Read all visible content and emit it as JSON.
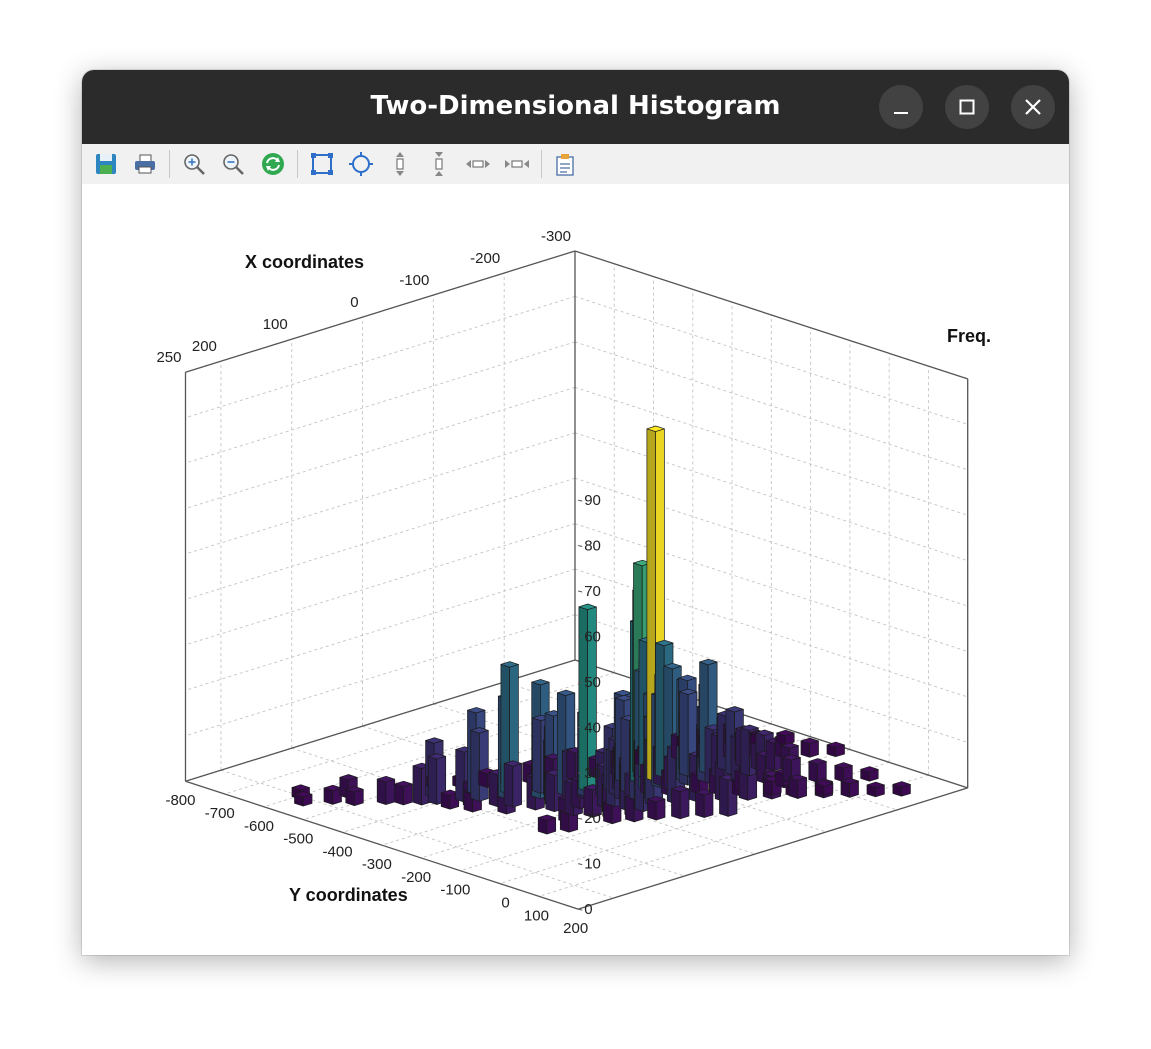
{
  "window": {
    "title": "Two-Dimensional Histogram",
    "controls": {
      "minimize": "minimize-icon",
      "maximize": "maximize-icon",
      "close": "close-icon"
    }
  },
  "toolbar": {
    "items": [
      {
        "name": "save",
        "icon": "save-icon"
      },
      {
        "name": "print",
        "icon": "print-icon"
      },
      {
        "name": "zoom-in",
        "icon": "zoom-in-icon"
      },
      {
        "name": "zoom-out",
        "icon": "zoom-out-icon"
      },
      {
        "name": "reset",
        "icon": "refresh-icon"
      },
      {
        "name": "fit",
        "icon": "fit-icon"
      },
      {
        "name": "fit-center",
        "icon": "fit-center-icon"
      },
      {
        "name": "zoom-vertical-in",
        "icon": "expand-vertical-icon"
      },
      {
        "name": "zoom-vertical-out",
        "icon": "shrink-vertical-icon"
      },
      {
        "name": "zoom-horizontal-in",
        "icon": "expand-horizontal-icon"
      },
      {
        "name": "zoom-horizontal-out",
        "icon": "shrink-horizontal-icon"
      },
      {
        "name": "properties",
        "icon": "properties-icon"
      }
    ]
  },
  "chart_data": {
    "type": "histogram3d",
    "xlabel": "X coordinates",
    "ylabel": "Y coordinates",
    "zlabel": "Freq.",
    "x_ticks": [
      250,
      200,
      100,
      0,
      -100,
      -200,
      -300
    ],
    "y_ticks": [
      -800,
      -700,
      -600,
      -500,
      -400,
      -300,
      -200,
      -100,
      0,
      100,
      200
    ],
    "z_ticks": [
      0,
      10,
      20,
      30,
      40,
      50,
      60,
      70,
      80,
      90
    ],
    "xlim": [
      250,
      -300
    ],
    "ylim": [
      -800,
      200
    ],
    "zlim": [
      0,
      90
    ],
    "grid": true,
    "colormap": [
      "#440154",
      "#3b528b",
      "#21918c",
      "#5ec962",
      "#fde725"
    ],
    "bars": [
      {
        "x": 214,
        "y": -565,
        "z": 2
      },
      {
        "x": 201,
        "y": -595,
        "z": 2
      },
      {
        "x": 189,
        "y": -535,
        "z": 3
      },
      {
        "x": 176,
        "y": -503,
        "z": 3
      },
      {
        "x": 164,
        "y": -540,
        "z": 4
      },
      {
        "x": 151,
        "y": -468,
        "z": 5
      },
      {
        "x": 139,
        "y": -445,
        "z": 4
      },
      {
        "x": 126,
        "y": -422,
        "z": 8
      },
      {
        "x": 114,
        "y": -405,
        "z": 10
      },
      {
        "x": 101,
        "y": -435,
        "z": 12
      },
      {
        "x": 89,
        "y": -380,
        "z": 11
      },
      {
        "x": 76,
        "y": -365,
        "z": 15
      },
      {
        "x": 64,
        "y": -395,
        "z": 18
      },
      {
        "x": 51,
        "y": -340,
        "z": 22
      },
      {
        "x": 39,
        "y": -355,
        "z": 28
      },
      {
        "x": 26,
        "y": -300,
        "z": 25
      },
      {
        "x": 14,
        "y": -320,
        "z": 16
      },
      {
        "x": 1,
        "y": -280,
        "z": 22
      },
      {
        "x": -11,
        "y": -250,
        "z": 18
      },
      {
        "x": -24,
        "y": -270,
        "z": 40
      },
      {
        "x": -36,
        "y": -215,
        "z": 12
      },
      {
        "x": -49,
        "y": -230,
        "z": 8
      },
      {
        "x": -61,
        "y": -180,
        "z": 6
      },
      {
        "x": -74,
        "y": -150,
        "z": 5
      },
      {
        "x": -86,
        "y": -165,
        "z": 7
      },
      {
        "x": -99,
        "y": -120,
        "z": 4
      },
      {
        "x": -111,
        "y": -95,
        "z": 5
      },
      {
        "x": -124,
        "y": -60,
        "z": 3
      },
      {
        "x": -136,
        "y": -75,
        "z": 4
      },
      {
        "x": -149,
        "y": -25,
        "z": 3
      },
      {
        "x": -161,
        "y": 10,
        "z": 2
      },
      {
        "x": -174,
        "y": -40,
        "z": 3
      },
      {
        "x": -186,
        "y": 40,
        "z": 2
      },
      {
        "x": 30,
        "y": -110,
        "z": 4
      },
      {
        "x": 10,
        "y": -90,
        "z": 5
      },
      {
        "x": -10,
        "y": -70,
        "z": 4
      },
      {
        "x": -30,
        "y": -45,
        "z": 6
      },
      {
        "x": -50,
        "y": -20,
        "z": 5
      },
      {
        "x": -70,
        "y": 5,
        "z": 8
      },
      {
        "x": 100,
        "y": -150,
        "z": 3
      },
      {
        "x": 80,
        "y": -130,
        "z": 4
      },
      {
        "x": 60,
        "y": -170,
        "z": 5
      },
      {
        "x": 40,
        "y": -190,
        "z": 7
      },
      {
        "x": 20,
        "y": -210,
        "z": 6
      },
      {
        "x": 0,
        "y": -180,
        "z": 9
      },
      {
        "x": -20,
        "y": -160,
        "z": 10
      },
      {
        "x": -40,
        "y": -130,
        "z": 14
      },
      {
        "x": -60,
        "y": -110,
        "z": 12
      },
      {
        "x": -80,
        "y": -90,
        "z": 10
      },
      {
        "x": -100,
        "y": -60,
        "z": 8
      },
      {
        "x": -120,
        "y": -35,
        "z": 7
      },
      {
        "x": -140,
        "y": -10,
        "z": 5
      },
      {
        "x": -160,
        "y": 20,
        "z": 4
      },
      {
        "x": -180,
        "y": 50,
        "z": 3
      },
      {
        "x": -200,
        "y": 80,
        "z": 3
      },
      {
        "x": -220,
        "y": 110,
        "z": 2
      },
      {
        "x": -240,
        "y": 140,
        "z": 2
      },
      {
        "x": -90,
        "y": -200,
        "z": 8
      },
      {
        "x": -110,
        "y": -170,
        "z": 15
      },
      {
        "x": -130,
        "y": -140,
        "z": 12
      },
      {
        "x": -150,
        "y": -110,
        "z": 10
      },
      {
        "x": -170,
        "y": -80,
        "z": 6
      },
      {
        "x": -190,
        "y": -50,
        "z": 5
      },
      {
        "x": -210,
        "y": -20,
        "z": 4
      },
      {
        "x": -230,
        "y": 10,
        "z": 3
      },
      {
        "x": -250,
        "y": 40,
        "z": 2
      },
      {
        "x": -160,
        "y": -280,
        "z": 5
      },
      {
        "x": -180,
        "y": -250,
        "z": 6
      },
      {
        "x": -200,
        "y": -220,
        "z": 7
      },
      {
        "x": -220,
        "y": -190,
        "z": 5
      },
      {
        "x": -240,
        "y": -160,
        "z": 4
      },
      {
        "x": -260,
        "y": -130,
        "z": 3
      },
      {
        "x": -280,
        "y": -100,
        "z": 2
      },
      {
        "x": -190,
        "y": -320,
        "z": 2
      },
      {
        "x": -210,
        "y": -300,
        "z": 2
      },
      {
        "x": -230,
        "y": -270,
        "z": 3
      },
      {
        "x": -250,
        "y": -240,
        "z": 2
      },
      {
        "x": -270,
        "y": -210,
        "z": 2
      },
      {
        "x": -120,
        "y": -300,
        "z": 3
      },
      {
        "x": -140,
        "y": -330,
        "z": 2
      },
      {
        "x": -100,
        "y": -320,
        "z": 4
      },
      {
        "x": -80,
        "y": -290,
        "z": 5
      },
      {
        "x": -60,
        "y": -310,
        "z": 4
      },
      {
        "x": -40,
        "y": -330,
        "z": 6
      },
      {
        "x": -20,
        "y": -350,
        "z": 5
      },
      {
        "x": 0,
        "y": -370,
        "z": 4
      },
      {
        "x": 20,
        "y": -390,
        "z": 4
      },
      {
        "x": 40,
        "y": -410,
        "z": 3
      },
      {
        "x": 60,
        "y": -440,
        "z": 2
      },
      {
        "x": 80,
        "y": -470,
        "z": 2
      },
      {
        "x": -75,
        "y": -220,
        "z": 25
      },
      {
        "x": -70,
        "y": -200,
        "z": 28
      },
      {
        "x": -60,
        "y": -245,
        "z": 20
      },
      {
        "x": -95,
        "y": -245,
        "z": 30
      },
      {
        "x": -110,
        "y": -230,
        "z": 29
      },
      {
        "x": -120,
        "y": -250,
        "z": 21
      },
      {
        "x": -130,
        "y": -205,
        "z": 18
      },
      {
        "x": -140,
        "y": -225,
        "z": 20
      },
      {
        "x": -95,
        "y": -225,
        "z": 77
      },
      {
        "x": -90,
        "y": -250,
        "z": 47
      },
      {
        "x": -100,
        "y": -270,
        "z": 40
      },
      {
        "x": -85,
        "y": -195,
        "z": 20
      },
      {
        "x": -80,
        "y": -240,
        "z": 35
      },
      {
        "x": -105,
        "y": -200,
        "z": 25
      },
      {
        "x": -115,
        "y": -185,
        "z": 22
      },
      {
        "x": -70,
        "y": -260,
        "z": 18
      },
      {
        "x": -50,
        "y": -210,
        "z": 16
      },
      {
        "x": -40,
        "y": -235,
        "z": 14
      },
      {
        "x": -30,
        "y": -190,
        "z": 12
      },
      {
        "x": -20,
        "y": -220,
        "z": 10
      },
      {
        "x": -10,
        "y": -175,
        "z": 12
      },
      {
        "x": -60,
        "y": -170,
        "z": 22
      },
      {
        "x": -50,
        "y": -150,
        "z": 18
      },
      {
        "x": -40,
        "y": -170,
        "z": 15
      },
      {
        "x": -30,
        "y": -140,
        "z": 14
      },
      {
        "x": -20,
        "y": -120,
        "z": 12
      },
      {
        "x": -10,
        "y": -140,
        "z": 10
      },
      {
        "x": 0,
        "y": -110,
        "z": 9
      },
      {
        "x": 10,
        "y": -150,
        "z": 8
      },
      {
        "x": 20,
        "y": -130,
        "z": 7
      },
      {
        "x": 30,
        "y": -160,
        "z": 6
      },
      {
        "x": -150,
        "y": -190,
        "z": 24
      },
      {
        "x": -160,
        "y": -210,
        "z": 18
      },
      {
        "x": -170,
        "y": -180,
        "z": 12
      },
      {
        "x": -180,
        "y": -200,
        "z": 10
      },
      {
        "x": -190,
        "y": -170,
        "z": 8
      },
      {
        "x": -200,
        "y": -190,
        "z": 6
      },
      {
        "x": -165,
        "y": -150,
        "z": 14
      },
      {
        "x": -175,
        "y": -130,
        "z": 10
      },
      {
        "x": -185,
        "y": -110,
        "z": 9
      },
      {
        "x": -195,
        "y": -140,
        "z": 7
      },
      {
        "x": -205,
        "y": -120,
        "z": 6
      },
      {
        "x": -215,
        "y": -100,
        "z": 5
      },
      {
        "x": -130,
        "y": -160,
        "z": 16
      },
      {
        "x": -140,
        "y": -180,
        "z": 11
      },
      {
        "x": -150,
        "y": -160,
        "z": 9
      },
      {
        "x": 35,
        "y": -250,
        "z": 20
      },
      {
        "x": 25,
        "y": -270,
        "z": 16
      },
      {
        "x": 15,
        "y": -290,
        "z": 12
      },
      {
        "x": 5,
        "y": -260,
        "z": 10
      },
      {
        "x": 45,
        "y": -230,
        "z": 8
      },
      {
        "x": 55,
        "y": -260,
        "z": 7
      },
      {
        "x": -5,
        "y": -240,
        "z": 9
      },
      {
        "x": 65,
        "y": -300,
        "z": 9
      },
      {
        "x": 75,
        "y": -320,
        "z": 7
      },
      {
        "x": 85,
        "y": -280,
        "z": 6
      },
      {
        "x": 95,
        "y": -350,
        "z": 5
      },
      {
        "x": 105,
        "y": -330,
        "z": 4
      },
      {
        "x": 115,
        "y": -370,
        "z": 3
      }
    ]
  }
}
